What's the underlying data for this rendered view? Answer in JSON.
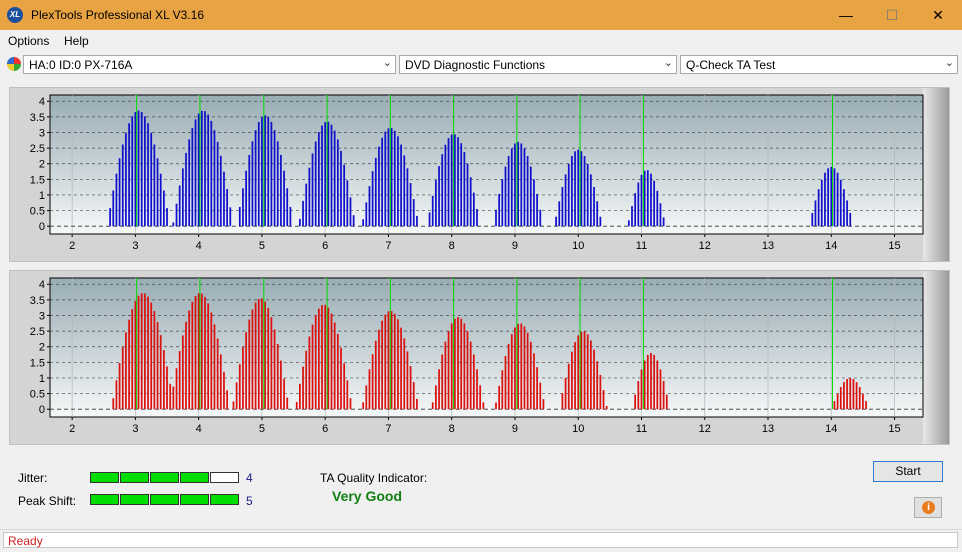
{
  "window": {
    "title": "PlexTools Professional XL V3.16",
    "icon_text": "XL",
    "minimize": "—",
    "maximize": "☐",
    "close": "✕"
  },
  "menu": {
    "items": [
      "Options",
      "Help"
    ]
  },
  "toolbar": {
    "drive": "HA:0 ID:0  PX-716A",
    "function": "DVD Diagnostic Functions",
    "test": "Q-Check TA Test"
  },
  "chart_data": [
    {
      "type": "bar",
      "title": "",
      "color": "#1010cc",
      "marker_color": "#00dd00",
      "xlim": [
        1.65,
        15.45
      ],
      "ylim": [
        -0.25,
        4.2
      ],
      "x_ticks": [
        2,
        3,
        4,
        5,
        6,
        7,
        8,
        9,
        10,
        11,
        12,
        13,
        14,
        15
      ],
      "y_ticks": [
        0,
        0.5,
        1,
        1.5,
        2,
        2.5,
        3,
        3.5,
        4
      ],
      "markers": [
        3.02,
        4.02,
        5.03,
        6.03,
        7.03,
        8.03,
        9.03,
        10.03,
        11.03,
        14.02
      ],
      "peaks": [
        {
          "center": 3.05,
          "height": 3.7,
          "width": 0.5
        },
        {
          "center": 4.07,
          "height": 3.7,
          "width": 0.48
        },
        {
          "center": 5.05,
          "height": 3.55,
          "width": 0.45
        },
        {
          "center": 6.03,
          "height": 3.35,
          "width": 0.45
        },
        {
          "center": 7.03,
          "height": 3.15,
          "width": 0.45
        },
        {
          "center": 8.03,
          "height": 2.95,
          "width": 0.42
        },
        {
          "center": 9.05,
          "height": 2.7,
          "width": 0.4
        },
        {
          "center": 10.0,
          "height": 2.45,
          "width": 0.38
        },
        {
          "center": 11.08,
          "height": 1.8,
          "width": 0.3
        },
        {
          "center": 14.0,
          "height": 1.9,
          "width": 0.35
        }
      ]
    },
    {
      "type": "bar",
      "title": "",
      "color": "#dd1010",
      "marker_color": "#00dd00",
      "xlim": [
        1.65,
        15.45
      ],
      "ylim": [
        -0.25,
        4.2
      ],
      "x_ticks": [
        2,
        3,
        4,
        5,
        6,
        7,
        8,
        9,
        10,
        11,
        12,
        13,
        14,
        15
      ],
      "y_ticks": [
        0,
        0.5,
        1,
        1.5,
        2,
        2.5,
        3,
        3.5,
        4
      ],
      "markers": [
        3.02,
        4.02,
        5.03,
        6.03,
        7.03,
        8.03,
        9.03,
        10.03,
        11.03,
        14.02
      ],
      "peaks": [
        {
          "center": 3.12,
          "height": 3.72,
          "width": 0.5
        },
        {
          "center": 4.02,
          "height": 3.72,
          "width": 0.48
        },
        {
          "center": 4.98,
          "height": 3.55,
          "width": 0.45
        },
        {
          "center": 5.98,
          "height": 3.35,
          "width": 0.45
        },
        {
          "center": 7.03,
          "height": 3.15,
          "width": 0.45
        },
        {
          "center": 8.1,
          "height": 2.95,
          "width": 0.42
        },
        {
          "center": 9.08,
          "height": 2.75,
          "width": 0.4
        },
        {
          "center": 10.08,
          "height": 2.5,
          "width": 0.38
        },
        {
          "center": 11.15,
          "height": 1.8,
          "width": 0.3
        },
        {
          "center": 14.3,
          "height": 1.0,
          "width": 0.3
        }
      ]
    }
  ],
  "status": {
    "jitter_label": "Jitter:",
    "jitter_value": "4",
    "jitter_level": 4,
    "peak_shift_label": "Peak Shift:",
    "peak_shift_value": "5",
    "peak_shift_level": 5,
    "segments": 5,
    "ta_quality_label": "TA Quality Indicator:",
    "ta_quality_value": "Very Good",
    "start_label": "Start",
    "info_icon": "i"
  },
  "statusbar": {
    "text": "Ready"
  }
}
